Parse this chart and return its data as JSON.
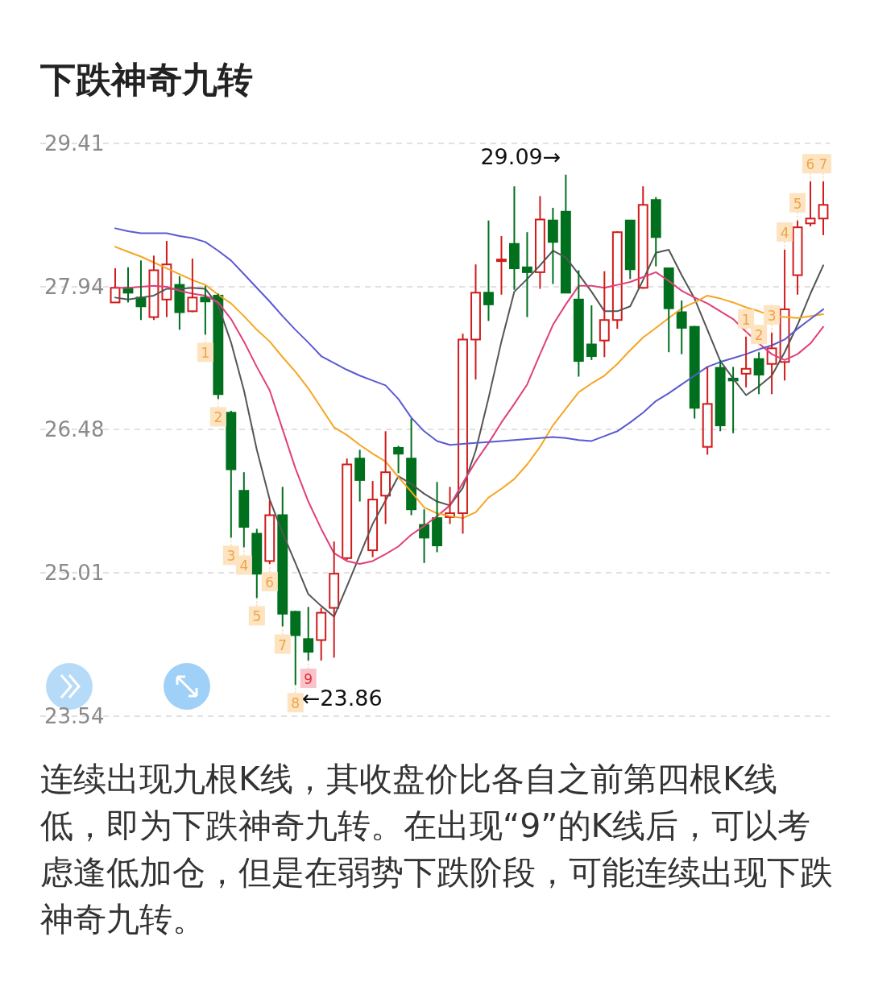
{
  "chart_data": {
    "type": "candlestick",
    "title": "下跌神奇九转",
    "annotations": [
      "29.09→",
      "←23.86",
      "连续出现九根K线，其收盘价比各自之前第四根K线低，即为下跌神奇九转。在出现“9”的K线后，可以考虑逢低加仓，但是在弱势下跌阶段，可能连续出现下跌神奇九转。"
    ],
    "categories": [
      null,
      null,
      null,
      null,
      null,
      null,
      null,
      null,
      null,
      null,
      null,
      null,
      null,
      null,
      null,
      null,
      null,
      null,
      null,
      null,
      null,
      null,
      null,
      null,
      null,
      null,
      null,
      null,
      null,
      null,
      null,
      null,
      null,
      null,
      null,
      null,
      null,
      null,
      null,
      null,
      null,
      null,
      null,
      null,
      null,
      null,
      null,
      null,
      null,
      null,
      null,
      null,
      null,
      null,
      null,
      null
    ],
    "ohlc": [
      [
        27.78,
        28.13,
        27.78,
        27.93
      ],
      [
        27.93,
        28.14,
        27.78,
        27.88
      ],
      [
        27.83,
        28.21,
        27.6,
        27.74
      ],
      [
        27.63,
        28.26,
        27.6,
        28.11
      ],
      [
        27.81,
        28.41,
        27.63,
        28.17
      ],
      [
        27.96,
        28.05,
        27.5,
        27.68
      ],
      [
        27.69,
        28.23,
        27.68,
        27.83
      ],
      [
        27.83,
        27.95,
        27.45,
        27.79
      ],
      [
        27.85,
        27.87,
        26.79,
        26.84
      ],
      [
        26.65,
        26.67,
        25.37,
        26.07
      ],
      [
        25.85,
        26.04,
        25.27,
        25.48
      ],
      [
        25.41,
        25.46,
        24.75,
        25.0
      ],
      [
        25.13,
        25.75,
        25.1,
        25.6
      ],
      [
        25.6,
        25.89,
        24.46,
        24.59
      ],
      [
        24.61,
        24.62,
        23.86,
        24.37
      ],
      [
        24.33,
        24.66,
        24.11,
        24.2
      ],
      [
        24.32,
        24.65,
        24.11,
        24.6
      ],
      [
        24.65,
        25.33,
        24.14,
        25.0
      ],
      [
        25.16,
        26.18,
        25.14,
        26.12
      ],
      [
        26.18,
        26.27,
        25.74,
        25.96
      ],
      [
        25.24,
        25.95,
        25.17,
        25.76
      ],
      [
        25.8,
        26.46,
        25.51,
        26.04
      ],
      [
        26.29,
        26.31,
        26.03,
        26.23
      ],
      [
        26.18,
        26.59,
        25.6,
        25.66
      ],
      [
        25.5,
        25.66,
        25.11,
        25.37
      ],
      [
        25.57,
        25.94,
        25.22,
        25.29
      ],
      [
        25.58,
        25.89,
        25.51,
        25.62
      ],
      [
        25.62,
        27.46,
        25.41,
        27.4
      ],
      [
        27.4,
        28.17,
        26.99,
        27.88
      ],
      [
        27.88,
        28.62,
        27.59,
        27.76
      ],
      [
        28.21,
        28.46,
        27.86,
        28.22
      ],
      [
        28.38,
        28.97,
        27.91,
        28.13
      ],
      [
        28.14,
        28.5,
        27.63,
        28.09
      ],
      [
        28.09,
        28.87,
        27.92,
        28.63
      ],
      [
        28.62,
        28.75,
        27.97,
        28.4
      ],
      [
        28.71,
        29.09,
        27.88,
        27.88
      ],
      [
        27.81,
        28.11,
        27.02,
        27.18
      ],
      [
        27.35,
        27.75,
        27.19,
        27.23
      ],
      [
        27.39,
        28.1,
        27.22,
        27.6
      ],
      [
        27.6,
        28.51,
        27.51,
        28.5
      ],
      [
        28.62,
        28.62,
        28.02,
        28.12
      ],
      [
        27.93,
        28.97,
        27.92,
        28.78
      ],
      [
        28.83,
        28.86,
        28.15,
        28.45
      ],
      [
        28.13,
        28.13,
        27.27,
        27.72
      ],
      [
        27.68,
        27.8,
        27.25,
        27.52
      ],
      [
        27.53,
        27.54,
        26.59,
        26.7
      ],
      [
        26.3,
        27.12,
        26.22,
        26.74
      ],
      [
        27.11,
        27.19,
        26.46,
        26.52
      ],
      [
        27.0,
        27.12,
        26.44,
        26.98
      ],
      [
        27.05,
        27.43,
        26.91,
        27.1
      ],
      [
        27.2,
        27.27,
        26.84,
        27.04
      ],
      [
        27.15,
        27.47,
        26.84,
        27.31
      ],
      [
        27.17,
        28.32,
        26.98,
        27.71
      ],
      [
        28.06,
        28.62,
        27.86,
        28.55
      ],
      [
        28.59,
        29.02,
        28.56,
        28.64
      ],
      [
        28.64,
        29.02,
        28.47,
        28.78
      ]
    ],
    "colors": [
      "#d01c1c",
      "#00701e",
      "#00701e",
      "#d01c1c",
      "#d01c1c",
      "#00701e",
      "#d01c1c",
      "#00701e",
      "#00701e",
      "#00701e",
      "#00701e",
      "#00701e",
      "#d01c1c",
      "#00701e",
      "#00701e",
      "#00701e",
      "#d01c1c",
      "#d01c1c",
      "#d01c1c",
      "#00701e",
      "#d01c1c",
      "#d01c1c",
      "#00701e",
      "#00701e",
      "#00701e",
      "#00701e",
      "#d01c1c",
      "#d01c1c",
      "#d01c1c",
      "#00701e",
      "#d01c1c",
      "#00701e",
      "#00701e",
      "#d01c1c",
      "#00701e",
      "#00701e",
      "#00701e",
      "#00701e",
      "#d01c1c",
      "#d01c1c",
      "#00701e",
      "#d01c1c",
      "#00701e",
      "#00701e",
      "#00701e",
      "#00701e",
      "#d01c1c",
      "#00701e",
      "#00701e",
      "#d01c1c",
      "#00701e",
      "#d01c1c",
      "#d01c1c",
      "#d01c1c",
      "#d01c1c",
      "#d01c1c"
    ],
    "value_labels": [
      null,
      null,
      null,
      null,
      null,
      null,
      null,
      "1",
      "2",
      "3",
      "4",
      "5",
      "6",
      "7",
      "8",
      "9",
      null,
      null,
      null,
      null,
      null,
      null,
      null,
      null,
      null,
      null,
      null,
      null,
      null,
      null,
      null,
      null,
      null,
      null,
      null,
      null,
      null,
      null,
      null,
      null,
      null,
      null,
      null,
      null,
      null,
      null,
      null,
      null,
      null,
      "1",
      "2",
      "3",
      "4",
      "5",
      "6",
      "7"
    ],
    "series": [
      {
        "type": "line",
        "color": "#555555",
        "values": [
          27.83,
          27.81,
          27.83,
          27.85,
          27.92,
          27.92,
          27.93,
          27.92,
          27.75,
          27.37,
          26.88,
          26.27,
          25.76,
          25.42,
          25.11,
          24.79,
          24.67,
          24.56,
          24.87,
          25.19,
          25.51,
          25.75,
          26.0,
          25.92,
          25.82,
          25.74,
          25.7,
          25.88,
          26.26,
          26.8,
          27.38,
          27.89,
          28.02,
          28.16,
          28.31,
          28.24,
          28.07,
          27.89,
          27.69,
          27.69,
          27.74,
          28.01,
          28.29,
          28.32,
          28.06,
          27.82,
          27.5,
          27.18,
          27.0,
          26.83,
          26.92,
          27.03,
          27.27,
          27.55,
          27.87,
          28.16
        ]
      },
      {
        "type": "line",
        "color": "#e0407a",
        "values": [
          27.93,
          27.93,
          27.94,
          27.95,
          27.94,
          27.9,
          27.87,
          27.85,
          27.78,
          27.61,
          27.38,
          27.12,
          26.88,
          26.48,
          26.08,
          25.74,
          25.46,
          25.21,
          25.13,
          25.1,
          25.13,
          25.2,
          25.28,
          25.4,
          25.49,
          25.59,
          25.7,
          25.93,
          26.15,
          26.34,
          26.55,
          26.74,
          26.94,
          27.25,
          27.55,
          27.76,
          27.95,
          27.95,
          27.93,
          27.96,
          27.99,
          28.04,
          28.09,
          28.0,
          27.9,
          27.83,
          27.77,
          27.69,
          27.61,
          27.48,
          27.36,
          27.25,
          27.19,
          27.25,
          27.36,
          27.53
        ]
      },
      {
        "type": "line",
        "color": "#f5a623",
        "values": [
          28.35,
          28.3,
          28.25,
          28.19,
          28.13,
          28.07,
          28.01,
          27.96,
          27.86,
          27.77,
          27.64,
          27.5,
          27.38,
          27.22,
          27.07,
          26.9,
          26.7,
          26.5,
          26.42,
          26.32,
          26.23,
          26.15,
          25.99,
          25.84,
          25.68,
          25.62,
          25.59,
          25.57,
          25.63,
          25.78,
          25.87,
          25.97,
          26.12,
          26.3,
          26.52,
          26.69,
          26.86,
          26.95,
          27.03,
          27.15,
          27.29,
          27.42,
          27.52,
          27.62,
          27.72,
          27.78,
          27.85,
          27.82,
          27.78,
          27.73,
          27.69,
          27.64,
          27.63,
          27.62,
          27.64,
          27.66
        ]
      },
      {
        "type": "line",
        "color": "#5a5ad2",
        "values": [
          28.54,
          28.51,
          28.49,
          28.49,
          28.49,
          28.46,
          28.44,
          28.4,
          28.31,
          28.21,
          28.07,
          27.93,
          27.79,
          27.64,
          27.5,
          27.37,
          27.23,
          27.16,
          27.09,
          27.03,
          26.98,
          26.93,
          26.79,
          26.6,
          26.46,
          26.36,
          26.32,
          26.33,
          26.34,
          26.35,
          26.36,
          26.37,
          26.38,
          26.39,
          26.4,
          26.39,
          26.37,
          26.36,
          26.41,
          26.46,
          26.55,
          26.65,
          26.77,
          26.85,
          26.94,
          27.03,
          27.12,
          27.17,
          27.21,
          27.25,
          27.3,
          27.34,
          27.4,
          27.51,
          27.61,
          27.71
        ]
      }
    ],
    "ylim": [
      23.54,
      29.41
    ],
    "yticks": [
      29.41,
      27.94,
      26.48,
      25.01,
      23.54
    ],
    "grid": "y"
  }
}
